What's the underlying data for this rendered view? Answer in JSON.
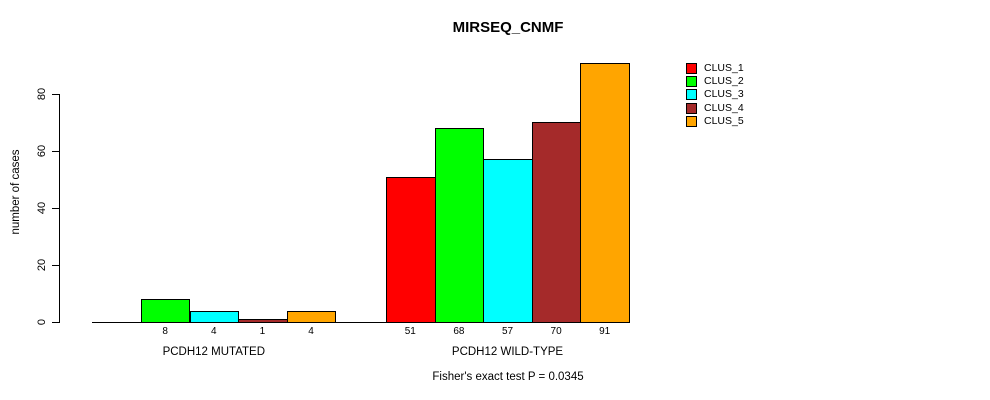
{
  "chart_data": {
    "type": "bar",
    "title": "MIRSEQ_CNMF",
    "ylabel": "number of cases",
    "xlabel": "",
    "yticks": [
      0,
      20,
      40,
      60,
      80
    ],
    "ylim": [
      0,
      91
    ],
    "grid": false,
    "legend_position": "right",
    "categories": [
      "PCDH12 MUTATED",
      "PCDH12 WILD-TYPE"
    ],
    "series": [
      {
        "name": "CLUS_1",
        "color": "#FF0000",
        "values": [
          0,
          51
        ]
      },
      {
        "name": "CLUS_2",
        "color": "#00FF00",
        "values": [
          8,
          68
        ]
      },
      {
        "name": "CLUS_3",
        "color": "#00FFFF",
        "values": [
          4,
          57
        ]
      },
      {
        "name": "CLUS_4",
        "color": "#A52A2A",
        "values": [
          1,
          70
        ]
      },
      {
        "name": "CLUS_5",
        "color": "#FFA500",
        "values": [
          4,
          91
        ]
      }
    ],
    "bar_labels": [
      [
        "",
        "8",
        "4",
        "1",
        "4"
      ],
      [
        "51",
        "68",
        "57",
        "70",
        "91"
      ]
    ],
    "annotation": "Fisher's exact test P = 0.0345",
    "axis_color": "#000000",
    "background_color": "#FFFFFF"
  }
}
